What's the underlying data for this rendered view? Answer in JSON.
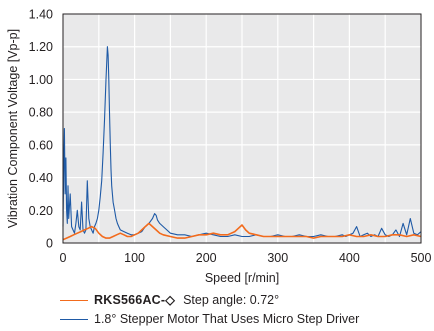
{
  "chart_data": {
    "type": "line",
    "xlabel": "Speed [r/min]",
    "ylabel": "Vibration Component Voltage [Vp-p]",
    "xlim": [
      0,
      500
    ],
    "ylim": [
      0,
      1.4
    ],
    "grid": true,
    "legend_position": "bottom",
    "x_tick_labels": [
      "0",
      "100",
      "200",
      "300",
      "400",
      "500"
    ],
    "y_tick_labels": [
      "0",
      "0.20",
      "0.40",
      "0.60",
      "0.80",
      "1.00",
      "1.20",
      "1.40"
    ],
    "x_ticks": [
      0,
      50,
      100,
      150,
      200,
      250,
      300,
      350,
      400,
      450,
      500
    ],
    "y_ticks": [
      0,
      0.2,
      0.4,
      0.6,
      0.8,
      1.0,
      1.2,
      1.4
    ],
    "series": [
      {
        "name": "1.8° Stepper Motor That Uses Micro Step Driver",
        "color": "#1f5aa6",
        "x": [
          0,
          1,
          2,
          3,
          4,
          5,
          6,
          7,
          8,
          10,
          12,
          14,
          16,
          18,
          20,
          22,
          24,
          26,
          28,
          30,
          32,
          34,
          36,
          38,
          40,
          42,
          44,
          46,
          48,
          50,
          52,
          54,
          56,
          58,
          60,
          61,
          62,
          63,
          64,
          65,
          66,
          67,
          68,
          70,
          72,
          74,
          76,
          78,
          80,
          85,
          90,
          95,
          100,
          105,
          110,
          115,
          120,
          125,
          128,
          130,
          132,
          135,
          140,
          145,
          150,
          160,
          170,
          180,
          190,
          200,
          210,
          220,
          230,
          240,
          250,
          260,
          270,
          280,
          290,
          300,
          310,
          320,
          330,
          340,
          350,
          360,
          370,
          380,
          390,
          395,
          400,
          405,
          410,
          415,
          420,
          425,
          430,
          435,
          440,
          445,
          450,
          455,
          460,
          465,
          470,
          475,
          480,
          485,
          490,
          495,
          500
        ],
        "values": [
          0.1,
          0.45,
          0.7,
          0.3,
          0.52,
          0.2,
          0.12,
          0.35,
          0.15,
          0.3,
          0.1,
          0.08,
          0.06,
          0.12,
          0.2,
          0.1,
          0.08,
          0.25,
          0.08,
          0.06,
          0.08,
          0.38,
          0.15,
          0.1,
          0.08,
          0.06,
          0.1,
          0.12,
          0.15,
          0.2,
          0.28,
          0.38,
          0.55,
          0.75,
          1.0,
          1.1,
          1.2,
          1.15,
          1.0,
          0.8,
          0.6,
          0.45,
          0.35,
          0.25,
          0.2,
          0.15,
          0.12,
          0.1,
          0.08,
          0.07,
          0.06,
          0.05,
          0.05,
          0.06,
          0.07,
          0.1,
          0.12,
          0.15,
          0.18,
          0.17,
          0.14,
          0.12,
          0.1,
          0.08,
          0.06,
          0.05,
          0.05,
          0.04,
          0.05,
          0.06,
          0.05,
          0.04,
          0.04,
          0.05,
          0.04,
          0.04,
          0.05,
          0.04,
          0.04,
          0.05,
          0.04,
          0.04,
          0.05,
          0.04,
          0.04,
          0.05,
          0.04,
          0.04,
          0.05,
          0.04,
          0.05,
          0.06,
          0.1,
          0.04,
          0.05,
          0.06,
          0.04,
          0.05,
          0.04,
          0.09,
          0.05,
          0.04,
          0.05,
          0.08,
          0.04,
          0.12,
          0.05,
          0.15,
          0.06,
          0.05,
          0.07
        ]
      },
      {
        "name": "RKS566AC-◇",
        "note": "Step angle: 0.72°",
        "color": "#f26b1d",
        "x": [
          0,
          5,
          10,
          15,
          20,
          25,
          30,
          35,
          40,
          45,
          50,
          55,
          60,
          65,
          70,
          75,
          80,
          85,
          90,
          95,
          100,
          105,
          110,
          115,
          120,
          125,
          130,
          135,
          140,
          150,
          160,
          170,
          180,
          190,
          200,
          210,
          220,
          230,
          240,
          245,
          250,
          255,
          260,
          270,
          280,
          290,
          300,
          310,
          320,
          330,
          340,
          350,
          360,
          370,
          380,
          390,
          400,
          410,
          420,
          430,
          440,
          450,
          460,
          470,
          480,
          490,
          500
        ],
        "values": [
          0.02,
          0.03,
          0.04,
          0.05,
          0.06,
          0.07,
          0.08,
          0.09,
          0.1,
          0.09,
          0.06,
          0.04,
          0.03,
          0.03,
          0.04,
          0.05,
          0.06,
          0.05,
          0.04,
          0.04,
          0.05,
          0.06,
          0.08,
          0.1,
          0.12,
          0.1,
          0.08,
          0.06,
          0.05,
          0.04,
          0.03,
          0.03,
          0.04,
          0.05,
          0.05,
          0.06,
          0.05,
          0.05,
          0.07,
          0.09,
          0.11,
          0.08,
          0.06,
          0.05,
          0.04,
          0.04,
          0.04,
          0.04,
          0.04,
          0.04,
          0.04,
          0.03,
          0.04,
          0.04,
          0.04,
          0.04,
          0.05,
          0.04,
          0.04,
          0.05,
          0.04,
          0.04,
          0.05,
          0.05,
          0.04,
          0.05,
          0.04
        ]
      }
    ]
  },
  "legend": {
    "orange_name": "RKS566AC-◇",
    "orange_note": "Step angle: 0.72°",
    "blue_name": "1.8° Stepper Motor That Uses Micro Step Driver"
  }
}
